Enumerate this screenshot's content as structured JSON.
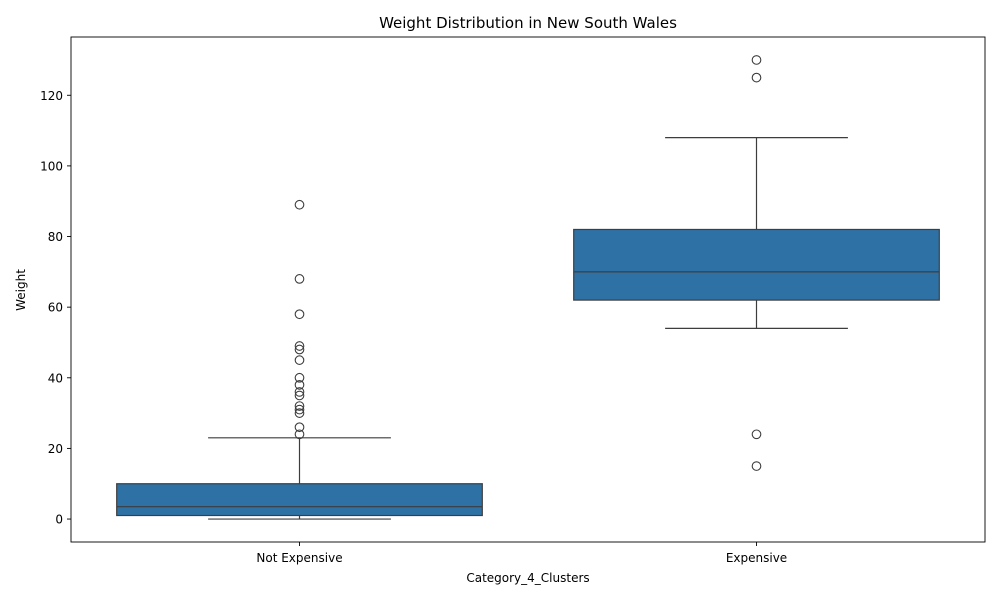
{
  "chart_data": {
    "type": "box",
    "title": "Weight Distribution in New South Wales",
    "xlabel": "Category_4_Clusters",
    "ylabel": "Weight",
    "ylim": [
      -6.5,
      136.5
    ],
    "yticks": [
      0,
      20,
      40,
      60,
      80,
      100,
      120
    ],
    "grid": false,
    "box_color": "#2e72a5",
    "line_color": "#3d3d3d",
    "categories": [
      {
        "name": "Not Expensive",
        "whisker_low": 0,
        "q1": 1,
        "median": 3.5,
        "q3": 10,
        "whisker_high": 23,
        "outliers": [
          24,
          26,
          30,
          31,
          32,
          35,
          36,
          38,
          40,
          45,
          48,
          49,
          58,
          68,
          89
        ]
      },
      {
        "name": "Expensive",
        "whisker_low": 54,
        "q1": 62,
        "median": 70,
        "q3": 82,
        "whisker_high": 108,
        "outliers": [
          15,
          24,
          125,
          130
        ]
      }
    ]
  }
}
